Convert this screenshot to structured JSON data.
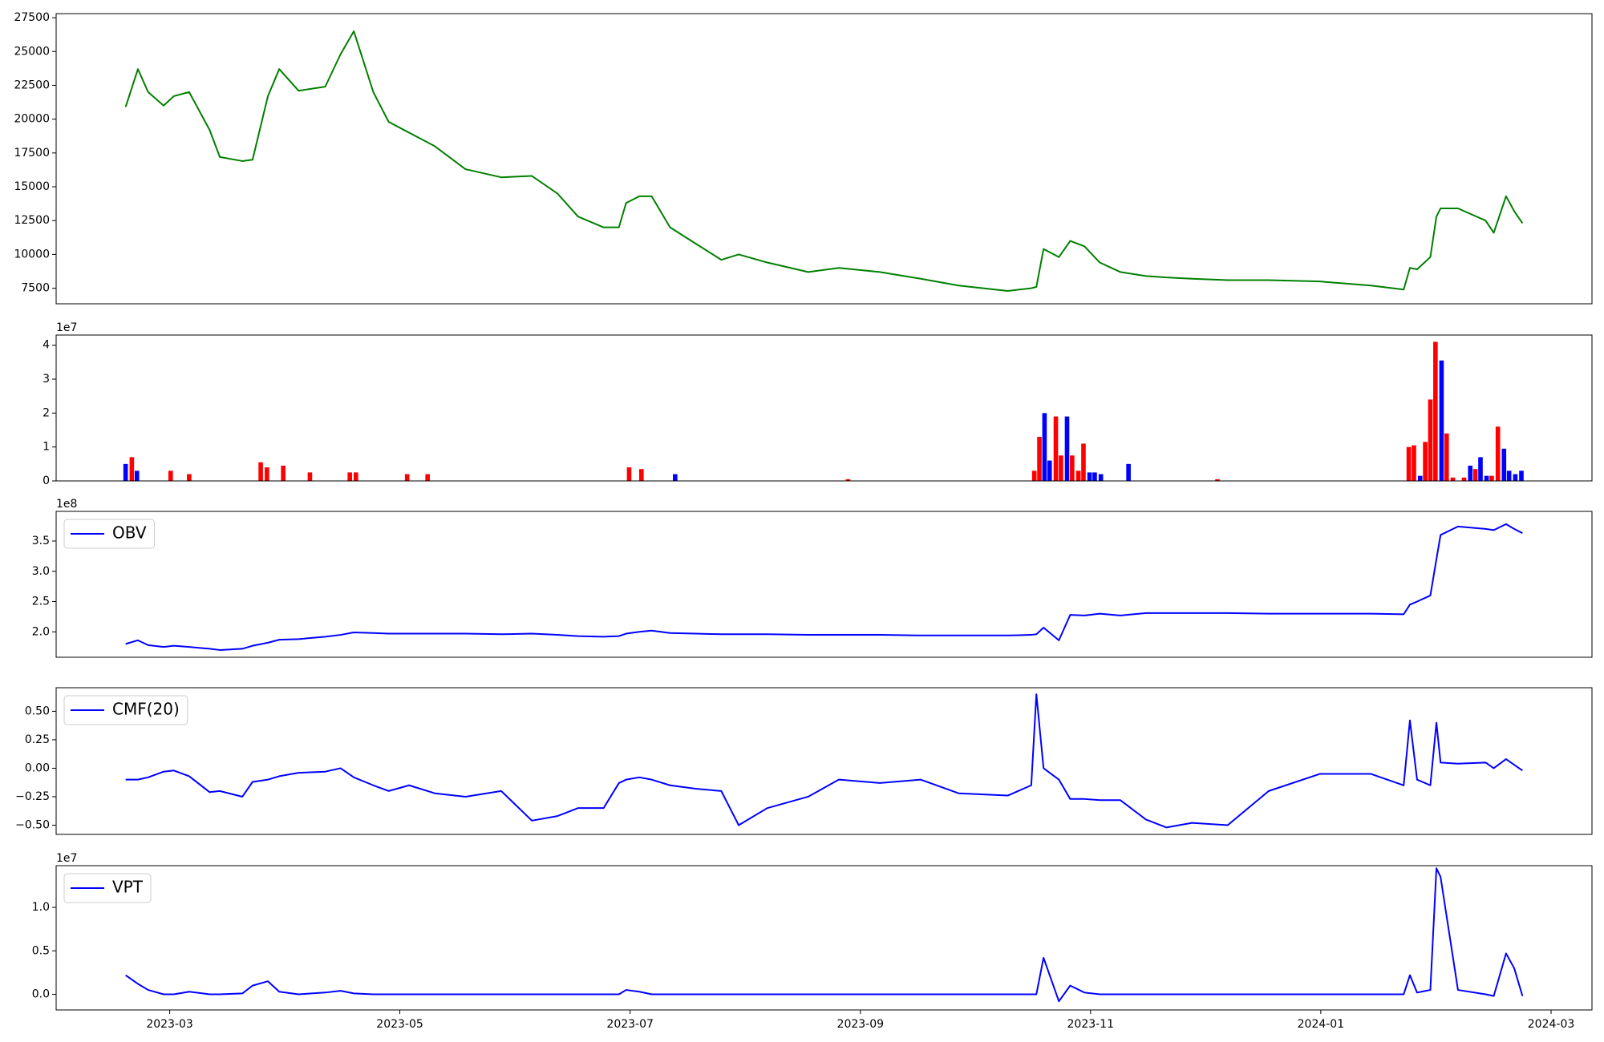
{
  "chart_data": [
    {
      "type": "line",
      "color": "#008000",
      "x": [
        2023.1348,
        2023.1437,
        2023.1511,
        2023.1623,
        2023.1697,
        2023.1808,
        2023.1956,
        2023.203,
        2023.2193,
        2023.2267,
        2023.2378,
        2023.246,
        2023.26,
        2023.2793,
        2023.2904,
        2023.3,
        2023.3141,
        2023.3252,
        2023.34,
        2023.3586,
        2023.3808,
        2023.4067,
        2023.4289,
        2023.4474,
        2023.4623,
        2023.4808,
        2023.4919,
        2023.4971,
        2023.5067,
        2023.5156,
        2023.5289,
        2023.5474,
        2023.566,
        2023.5786,
        2023.5993,
        2023.6289,
        2023.6511,
        2023.6808,
        2023.7104,
        2023.7378,
        2023.7734,
        2023.7904,
        2023.7941,
        2023.7993,
        2023.8104,
        2023.8186,
        2023.8289,
        2023.84,
        2023.8548,
        2023.8734,
        2023.8882,
        2023.9067,
        2023.9326,
        2023.9623,
        2023.9993,
        2024.0363,
        2024.06,
        2024.0645,
        2024.0697,
        2024.0793,
        2024.0837,
        2024.0867,
        2024.0993,
        2024.1193,
        2024.1252,
        2024.1341,
        2024.14,
        2024.146
      ],
      "values": [
        20900,
        23700,
        22000,
        21000,
        21700,
        22000,
        19200,
        17200,
        16900,
        17000,
        21700,
        23700,
        22100,
        22400,
        24800,
        26500,
        22000,
        19800,
        19000,
        18000,
        16300,
        15700,
        15800,
        14500,
        12800,
        12000,
        12000,
        13800,
        14300,
        14300,
        12000,
        10800,
        9600,
        10000,
        9400,
        8700,
        9000,
        8700,
        8200,
        7700,
        7300,
        7500,
        7600,
        10400,
        9800,
        11000,
        10600,
        9400,
        8700,
        8400,
        8300,
        8200,
        8100,
        8100,
        8000,
        7700,
        7400,
        9000,
        8900,
        9800,
        12800,
        13400,
        13400,
        12500,
        11600,
        14300,
        13200,
        12300
      ],
      "xlim": [
        2023.0845,
        2024.1963
      ],
      "ylim": [
        6350,
        27800
      ],
      "yticks": [
        7500,
        10000,
        12500,
        15000,
        17500,
        20000,
        22500,
        25000,
        27500
      ]
    },
    {
      "type": "bar",
      "y_offset_label": "1e7",
      "x": [
        2023.1348,
        2023.1393,
        2023.143,
        2023.1674,
        2023.1808,
        2023.2326,
        2023.2371,
        2023.2489,
        2023.2682,
        2023.2971,
        2023.3015,
        2023.3386,
        2023.3534,
        2023.4993,
        2023.5082,
        2023.5326,
        2023.6578,
        2023.7926,
        2023.7963,
        2023.8,
        2023.8037,
        2023.8082,
        2023.8119,
        2023.8163,
        2023.82,
        2023.8245,
        2023.8282,
        2023.8326,
        2023.8363,
        2023.8408,
        2023.8608,
        2023.9252,
        2024.0637,
        2024.0674,
        2024.0719,
        2024.0756,
        2024.0793,
        2024.083,
        2024.0874,
        2024.0911,
        2024.0956,
        2024.1037,
        2024.1082,
        2024.1119,
        2024.1156,
        2024.12,
        2024.1237,
        2024.1282,
        2024.1326,
        2024.1363,
        2024.1408,
        2024.1452
      ],
      "values": [
        0.5,
        0.7,
        0.3,
        0.3,
        0.2,
        0.55,
        0.4,
        0.45,
        0.25,
        0.25,
        0.25,
        0.2,
        0.2,
        0.4,
        0.35,
        0.2,
        0.05,
        0.3,
        1.3,
        2.0,
        0.6,
        1.9,
        0.75,
        1.9,
        0.75,
        0.3,
        1.1,
        0.25,
        0.25,
        0.2,
        0.5,
        0.05,
        1.0,
        1.05,
        0.15,
        1.15,
        2.4,
        4.1,
        3.55,
        1.4,
        0.1,
        0.1,
        0.45,
        0.35,
        0.7,
        0.15,
        0.15,
        1.6,
        0.95,
        0.3,
        0.2,
        0.3
      ],
      "colors": [
        "#0000ff",
        "#ff0000",
        "#0000ff",
        "#ff0000",
        "#ff0000",
        "#ff0000",
        "#ff0000",
        "#ff0000",
        "#ff0000",
        "#ff0000",
        "#ff0000",
        "#ff0000",
        "#ff0000",
        "#ff0000",
        "#ff0000",
        "#0000ff",
        "#ff0000",
        "#ff0000",
        "#ff0000",
        "#0000ff",
        "#0000ff",
        "#ff0000",
        "#ff0000",
        "#0000ff",
        "#ff0000",
        "#ff0000",
        "#ff0000",
        "#0000ff",
        "#0000ff",
        "#0000ff",
        "#0000ff",
        "#ff0000",
        "#ff0000",
        "#ff0000",
        "#0000ff",
        "#ff0000",
        "#ff0000",
        "#ff0000",
        "#0000ff",
        "#ff0000",
        "#ff0000",
        "#ff0000",
        "#0000ff",
        "#ff0000",
        "#0000ff",
        "#0000ff",
        "#ff0000",
        "#ff0000",
        "#0000ff",
        "#0000ff",
        "#0000ff",
        "#0000ff"
      ],
      "xlim": [
        2023.0845,
        2024.1963
      ],
      "ylim": [
        0,
        4.3
      ],
      "yticks": [
        0,
        1,
        2,
        3,
        4
      ]
    },
    {
      "type": "line",
      "y_offset_label": "1e8",
      "legend": "upper left",
      "x": [
        2023.1348,
        2023.1437,
        2023.1511,
        2023.1623,
        2023.1697,
        2023.1808,
        2023.1956,
        2023.203,
        2023.2193,
        2023.2267,
        2023.2378,
        2023.246,
        2023.26,
        2023.2793,
        2023.2904,
        2023.3,
        2023.3141,
        2023.3252,
        2023.34,
        2023.3586,
        2023.3808,
        2023.4067,
        2023.4289,
        2023.4474,
        2023.4623,
        2023.4808,
        2023.4919,
        2023.4971,
        2023.5067,
        2023.5156,
        2023.5289,
        2023.5474,
        2023.566,
        2023.5786,
        2023.5993,
        2023.6289,
        2023.6511,
        2023.6808,
        2023.7104,
        2023.7378,
        2023.7734,
        2023.7904,
        2023.7941,
        2023.7993,
        2023.8104,
        2023.8186,
        2023.8289,
        2023.84,
        2023.8548,
        2023.8734,
        2023.8882,
        2023.9067,
        2023.9326,
        2023.9623,
        2023.9993,
        2024.0363,
        2024.06,
        2024.0645,
        2024.0697,
        2024.0793,
        2024.0837,
        2024.0867,
        2024.0993,
        2024.1193,
        2024.1252,
        2024.1341,
        2024.14,
        2024.146
      ],
      "series": [
        {
          "name": "OBV",
          "color": "#0000ff",
          "values": [
            1.8,
            1.86,
            1.78,
            1.75,
            1.77,
            1.75,
            1.72,
            1.7,
            1.72,
            1.77,
            1.82,
            1.87,
            1.88,
            1.92,
            1.95,
            1.99,
            1.98,
            1.97,
            1.97,
            1.97,
            1.97,
            1.96,
            1.97,
            1.95,
            1.93,
            1.92,
            1.93,
            1.97,
            2.0,
            2.02,
            1.98,
            1.97,
            1.96,
            1.96,
            1.96,
            1.95,
            1.95,
            1.95,
            1.94,
            1.94,
            1.94,
            1.95,
            1.96,
            2.07,
            1.86,
            2.28,
            2.27,
            2.3,
            2.27,
            2.31,
            2.31,
            2.31,
            2.31,
            2.3,
            2.3,
            2.3,
            2.29,
            2.45,
            2.5,
            2.6,
            3.2,
            3.6,
            3.74,
            3.7,
            3.68,
            3.78,
            3.7,
            3.63
          ]
        }
      ],
      "xlim": [
        2023.0845,
        2024.1963
      ],
      "ylim": [
        1.58,
        3.99
      ],
      "yticks": [
        {
          "value": 2.0,
          "label": "2.0"
        },
        {
          "value": 2.5,
          "label": "2.5"
        },
        {
          "value": 3.0,
          "label": "3.0"
        },
        {
          "value": 3.5,
          "label": "3.5"
        }
      ]
    },
    {
      "type": "line",
      "legend": "upper left",
      "x": [
        2023.1348,
        2023.1437,
        2023.1511,
        2023.1623,
        2023.1697,
        2023.1808,
        2023.1956,
        2023.203,
        2023.2193,
        2023.2267,
        2023.2378,
        2023.246,
        2023.26,
        2023.2793,
        2023.2904,
        2023.3,
        2023.3141,
        2023.3252,
        2023.34,
        2023.3586,
        2023.3808,
        2023.4067,
        2023.4289,
        2023.4474,
        2023.4623,
        2023.4808,
        2023.4919,
        2023.4971,
        2023.5067,
        2023.5156,
        2023.5289,
        2023.5474,
        2023.566,
        2023.5786,
        2023.5993,
        2023.6289,
        2023.6511,
        2023.6808,
        2023.7104,
        2023.7378,
        2023.7734,
        2023.7904,
        2023.7941,
        2023.7993,
        2023.8104,
        2023.8186,
        2023.8289,
        2023.84,
        2023.8548,
        2023.8734,
        2023.8882,
        2023.9067,
        2023.9326,
        2023.9623,
        2023.9993,
        2024.0363,
        2024.06,
        2024.0645,
        2024.0697,
        2024.0793,
        2024.0837,
        2024.0867,
        2024.0993,
        2024.1193,
        2024.1252,
        2024.1341,
        2024.14,
        2024.146
      ],
      "series": [
        {
          "name": "CMF(20)",
          "color": "#0000ff",
          "values": [
            -0.1,
            -0.1,
            -0.08,
            -0.03,
            -0.02,
            -0.07,
            -0.21,
            -0.2,
            -0.25,
            -0.12,
            -0.1,
            -0.07,
            -0.04,
            -0.03,
            0,
            -0.08,
            -0.15,
            -0.2,
            -0.15,
            -0.22,
            -0.25,
            -0.2,
            -0.46,
            -0.42,
            -0.35,
            -0.35,
            -0.13,
            -0.1,
            -0.08,
            -0.1,
            -0.15,
            -0.18,
            -0.2,
            -0.5,
            -0.35,
            -0.25,
            -0.1,
            -0.13,
            -0.1,
            -0.22,
            -0.24,
            -0.15,
            0.65,
            0,
            -0.1,
            -0.27,
            -0.27,
            -0.28,
            -0.28,
            -0.45,
            -0.52,
            -0.48,
            -0.5,
            -0.2,
            -0.05,
            -0.05,
            -0.15,
            0.42,
            -0.1,
            -0.15,
            0.4,
            0.05,
            0.04,
            0.05,
            0,
            0.08,
            0.03,
            -0.02
          ]
        }
      ],
      "xlim": [
        2023.0845,
        2024.1963
      ],
      "ylim": [
        -0.581,
        0.707
      ],
      "yticks": [
        {
          "value": -0.5,
          "label": "−0.50"
        },
        {
          "value": -0.25,
          "label": "−0.25"
        },
        {
          "value": 0,
          "label": "0.00"
        },
        {
          "value": 0.25,
          "label": "0.25"
        },
        {
          "value": 0.5,
          "label": "0.50"
        }
      ]
    },
    {
      "type": "line",
      "y_offset_label": "1e7",
      "legend": "upper left",
      "x": [
        2023.1348,
        2023.1437,
        2023.1511,
        2023.1623,
        2023.1697,
        2023.1808,
        2023.1956,
        2023.203,
        2023.2193,
        2023.2267,
        2023.2378,
        2023.246,
        2023.26,
        2023.2793,
        2023.2904,
        2023.3,
        2023.3141,
        2023.3252,
        2023.34,
        2023.3586,
        2023.3808,
        2023.4067,
        2023.4289,
        2023.4474,
        2023.4623,
        2023.4808,
        2023.4919,
        2023.4971,
        2023.5067,
        2023.5156,
        2023.5289,
        2023.5474,
        2023.566,
        2023.5786,
        2023.5993,
        2023.6289,
        2023.6511,
        2023.6808,
        2023.7104,
        2023.7378,
        2023.7734,
        2023.7904,
        2023.7941,
        2023.7993,
        2023.8104,
        2023.8186,
        2023.8289,
        2023.84,
        2023.8548,
        2023.8734,
        2023.8882,
        2023.9067,
        2023.9326,
        2023.9623,
        2023.9993,
        2024.0363,
        2024.06,
        2024.0645,
        2024.0697,
        2024.0793,
        2024.0837,
        2024.0867,
        2024.0993,
        2024.1193,
        2024.1252,
        2024.1341,
        2024.14,
        2024.146
      ],
      "series": [
        {
          "name": "VPT",
          "color": "#0000ff",
          "values": [
            0.22,
            0.12,
            0.05,
            0,
            0,
            0.03,
            0,
            0,
            0.01,
            0.1,
            0.15,
            0.03,
            0,
            0.02,
            0.04,
            0.01,
            0,
            0,
            0,
            0,
            0,
            0,
            0,
            0,
            0,
            0,
            0,
            0.05,
            0.03,
            0,
            0,
            0,
            0,
            0,
            0,
            0,
            0,
            0,
            0,
            0,
            0,
            0,
            0,
            0.42,
            -0.08,
            0.1,
            0.02,
            0,
            0,
            0,
            0,
            0,
            0,
            0,
            0,
            0,
            0,
            0.22,
            0.02,
            0.05,
            1.45,
            1.35,
            0.05,
            0,
            -0.02,
            0.47,
            0.3,
            -0.02
          ]
        }
      ],
      "xlim": [
        2023.0845,
        2024.1963
      ],
      "ylim": [
        -0.18,
        1.48
      ],
      "yticks": [
        {
          "value": 0,
          "label": "0.0"
        },
        {
          "value": 0.5,
          "label": "0.5"
        },
        {
          "value": 1.0,
          "label": "1.0"
        }
      ],
      "xticks": [
        {
          "value": 2023.1667,
          "label": "2023-03"
        },
        {
          "value": 2023.3333,
          "label": "2023-05"
        },
        {
          "value": 2023.5,
          "label": "2023-07"
        },
        {
          "value": 2023.6667,
          "label": "2023-09"
        },
        {
          "value": 2023.8333,
          "label": "2023-11"
        },
        {
          "value": 2024.0,
          "label": "2024-01"
        },
        {
          "value": 2024.1667,
          "label": "2024-03"
        }
      ]
    }
  ]
}
